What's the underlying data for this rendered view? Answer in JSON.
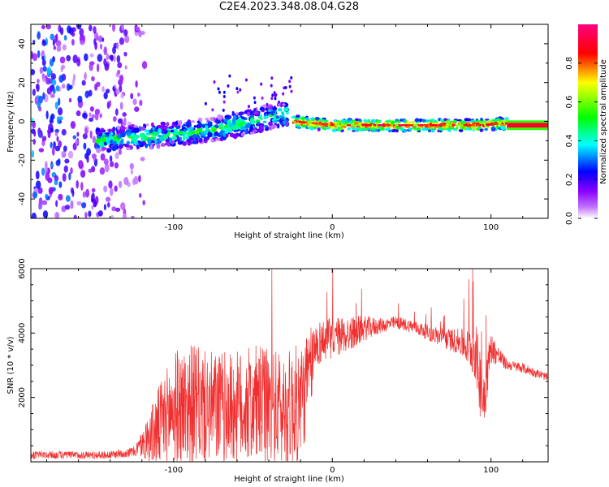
{
  "figure_title": "C2E4.2023.348.08.04.G28",
  "chart_data": [
    {
      "type": "heatmap",
      "title": "",
      "xlabel": "Height of straight line (km)",
      "ylabel": "Frequency (Hz)",
      "xlim": [
        -190,
        136
      ],
      "ylim": [
        -50,
        50
      ],
      "xticks": [
        -100,
        0,
        100
      ],
      "xtick_labels": [
        "-100",
        "0",
        "100"
      ],
      "yticks": [
        -40,
        -20,
        0,
        20,
        40
      ],
      "ytick_labels": [
        "-40",
        "-20",
        "0",
        "20",
        "40"
      ],
      "colorbar": {
        "label": "Normalized spectral amplitude",
        "range": [
          0,
          1
        ],
        "ticks": [
          0.0,
          0.2,
          0.4,
          0.6,
          0.8
        ],
        "tick_labels": [
          "0.0",
          "0.2",
          "0.4",
          "0.6",
          "0.8"
        ],
        "colormap": [
          "#ffffff",
          "#8a00ff",
          "#0000ff",
          "#00ffff",
          "#00ff00",
          "#ffff00",
          "#ff0000",
          "#ff0080"
        ]
      },
      "features": [
        {
          "region": "noise",
          "x_range": [
            -190,
            -118
          ],
          "y_range": [
            -50,
            50
          ],
          "amplitude": 0.25
        },
        {
          "region": "rising-trace",
          "x": [
            -148,
            -120,
            -90,
            -60,
            -40,
            -28
          ],
          "y": [
            -10,
            -8,
            -6,
            -2,
            2,
            4
          ],
          "amplitude": 0.35
        },
        {
          "region": "steady-trace",
          "x": [
            -25,
            0,
            50,
            90,
            110
          ],
          "y": [
            0,
            -2,
            -2,
            -2,
            -1
          ],
          "amplitude": 0.75
        },
        {
          "region": "bright-line",
          "x_range": [
            110,
            136
          ],
          "y": -2,
          "amplitude": 0.9
        }
      ],
      "grid": false
    },
    {
      "type": "line",
      "title": "",
      "xlabel": "Height of straight line (km)",
      "ylabel": "SNR (10 * v/v)",
      "xlim": [
        -190,
        136
      ],
      "ylim": [
        0,
        6000
      ],
      "xticks": [
        -100,
        0,
        100
      ],
      "xtick_labels": [
        "-100",
        "0",
        "100"
      ],
      "yticks": [
        2000,
        4000,
        6000
      ],
      "ytick_labels": [
        "2000",
        "4000",
        "6000"
      ],
      "color": "#f03030",
      "x": [
        -190,
        -160,
        -140,
        -125,
        -120,
        -110,
        -100,
        -90,
        -80,
        -70,
        -60,
        -50,
        -40,
        -30,
        -20,
        -15,
        -10,
        0,
        10,
        20,
        30,
        40,
        50,
        60,
        70,
        80,
        85,
        90,
        95,
        100,
        110,
        120,
        136
      ],
      "y": [
        200,
        200,
        200,
        300,
        500,
        900,
        1500,
        1600,
        1500,
        1500,
        1500,
        1600,
        1500,
        1400,
        1600,
        2500,
        3600,
        3800,
        3900,
        4100,
        4200,
        4300,
        4200,
        4000,
        3800,
        3700,
        3500,
        3400,
        1800,
        3500,
        3000,
        2900,
        2600
      ],
      "spike_amplitude": [
        150,
        150,
        150,
        200,
        500,
        1600,
        2200,
        2400,
        2200,
        2200,
        2200,
        2300,
        2300,
        2300,
        2400,
        1800,
        900,
        800,
        700,
        500,
        300,
        250,
        250,
        300,
        400,
        500,
        700,
        1200,
        1500,
        600,
        200,
        200,
        150
      ],
      "grid": false
    }
  ]
}
